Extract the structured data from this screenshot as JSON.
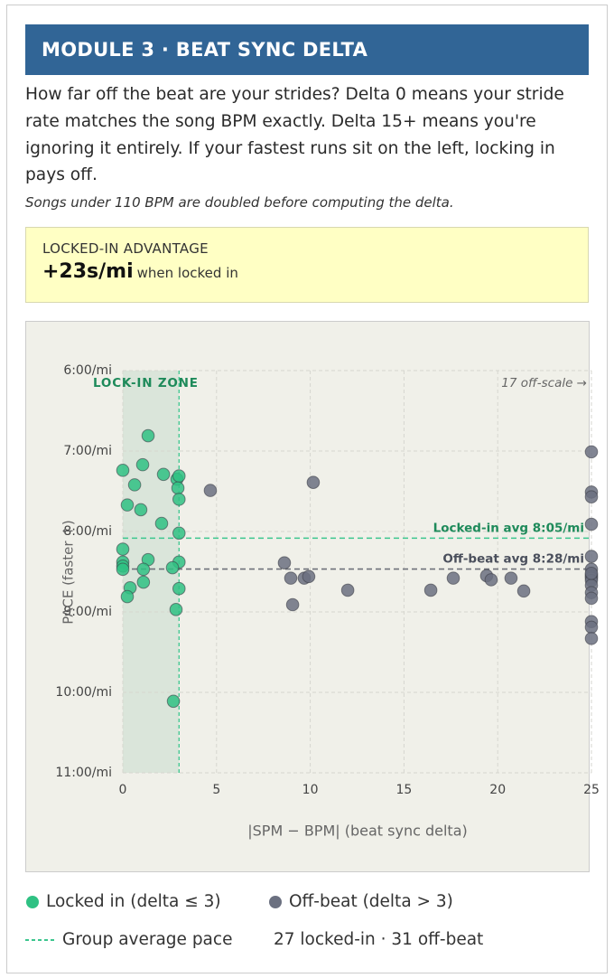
{
  "header": {
    "title": "MODULE 3 · BEAT SYNC DELTA",
    "description": "How far off the beat are your strides? Delta 0 means your stride rate matches the song BPM exactly. Delta 15+ means you're ignoring it entirely. If your fastest runs sit on the left, locking in pays off.",
    "note": "Songs under 110 BPM are doubled before computing the delta."
  },
  "callout": {
    "label": "LOCKED-IN ADVANTAGE",
    "value": "+23s/mi",
    "suffix": "when locked in"
  },
  "chart_data": {
    "type": "scatter",
    "xlabel": "|SPM − BPM| (beat sync delta)",
    "ylabel": "PACE (faster ↑)",
    "xlim": [
      0,
      25
    ],
    "ylim": [
      11,
      6
    ],
    "grid": true,
    "xticks": [
      0,
      5,
      10,
      15,
      20,
      25
    ],
    "yticks": [
      {
        "value": 6,
        "label": "6:00/mi"
      },
      {
        "value": 7,
        "label": "7:00/mi"
      },
      {
        "value": 8,
        "label": "8:00/mi"
      },
      {
        "value": 9,
        "label": "9:00/mi"
      },
      {
        "value": 10,
        "label": "10:00/mi"
      },
      {
        "value": 11,
        "label": "11:00/mi"
      }
    ],
    "zone": {
      "label": "LOCK-IN ZONE",
      "xlim": [
        0,
        3
      ],
      "color": "#1e8a5a"
    },
    "off_scale_note": "17 off-scale →",
    "reference_lines": [
      {
        "value": 8.083,
        "label": "Locked-in avg 8:05/mi",
        "color": "#1e8a5a",
        "line_color": "#3cc68e"
      },
      {
        "value": 8.467,
        "label": "Off-beat avg 8:28/mi",
        "color": "#4a4f5c",
        "line_color": "#6e717a"
      }
    ],
    "series": [
      {
        "name": "Off-beat (delta > 3)",
        "color": "#6b7080",
        "x": [
          4.67,
          10.16,
          8.62,
          8.96,
          9.06,
          9.68,
          9.92,
          12.0,
          16.43,
          17.63,
          19.41,
          19.65,
          20.71,
          21.39,
          25,
          25,
          25,
          25,
          25,
          25,
          25,
          25,
          25,
          25,
          25,
          25,
          25,
          25,
          25,
          25,
          25
        ],
        "values": [
          7.49,
          7.39,
          8.39,
          8.58,
          8.91,
          8.58,
          8.56,
          8.73,
          8.73,
          8.58,
          8.55,
          8.6,
          8.58,
          8.74,
          7.01,
          7.51,
          7.57,
          7.91,
          8.31,
          8.47,
          8.54,
          8.56,
          8.58,
          8.61,
          8.67,
          8.76,
          8.83,
          9.12,
          9.19,
          9.33,
          8.52
        ]
      },
      {
        "name": "Locked in (delta ≤ 3)",
        "color": "#2fc183",
        "x": [
          1.35,
          0,
          1.06,
          0.63,
          2.17,
          2.89,
          3.0,
          2.94,
          3.0,
          0.24,
          0.96,
          2.07,
          3.0,
          0,
          0,
          0,
          0,
          1.35,
          1.1,
          3.0,
          2.65,
          1.1,
          0.39,
          0.24,
          3.0,
          2.84,
          2.7
        ],
        "values": [
          6.81,
          7.24,
          7.17,
          7.42,
          7.29,
          7.35,
          7.31,
          7.46,
          7.6,
          7.67,
          7.73,
          7.9,
          8.02,
          8.22,
          8.38,
          8.43,
          8.47,
          8.35,
          8.47,
          8.38,
          8.45,
          8.63,
          8.7,
          8.81,
          8.71,
          8.97,
          10.11
        ]
      }
    ],
    "legend_extra": {
      "line_label": "Group average pace",
      "counts": "27 locked-in · 31 off-beat"
    }
  }
}
